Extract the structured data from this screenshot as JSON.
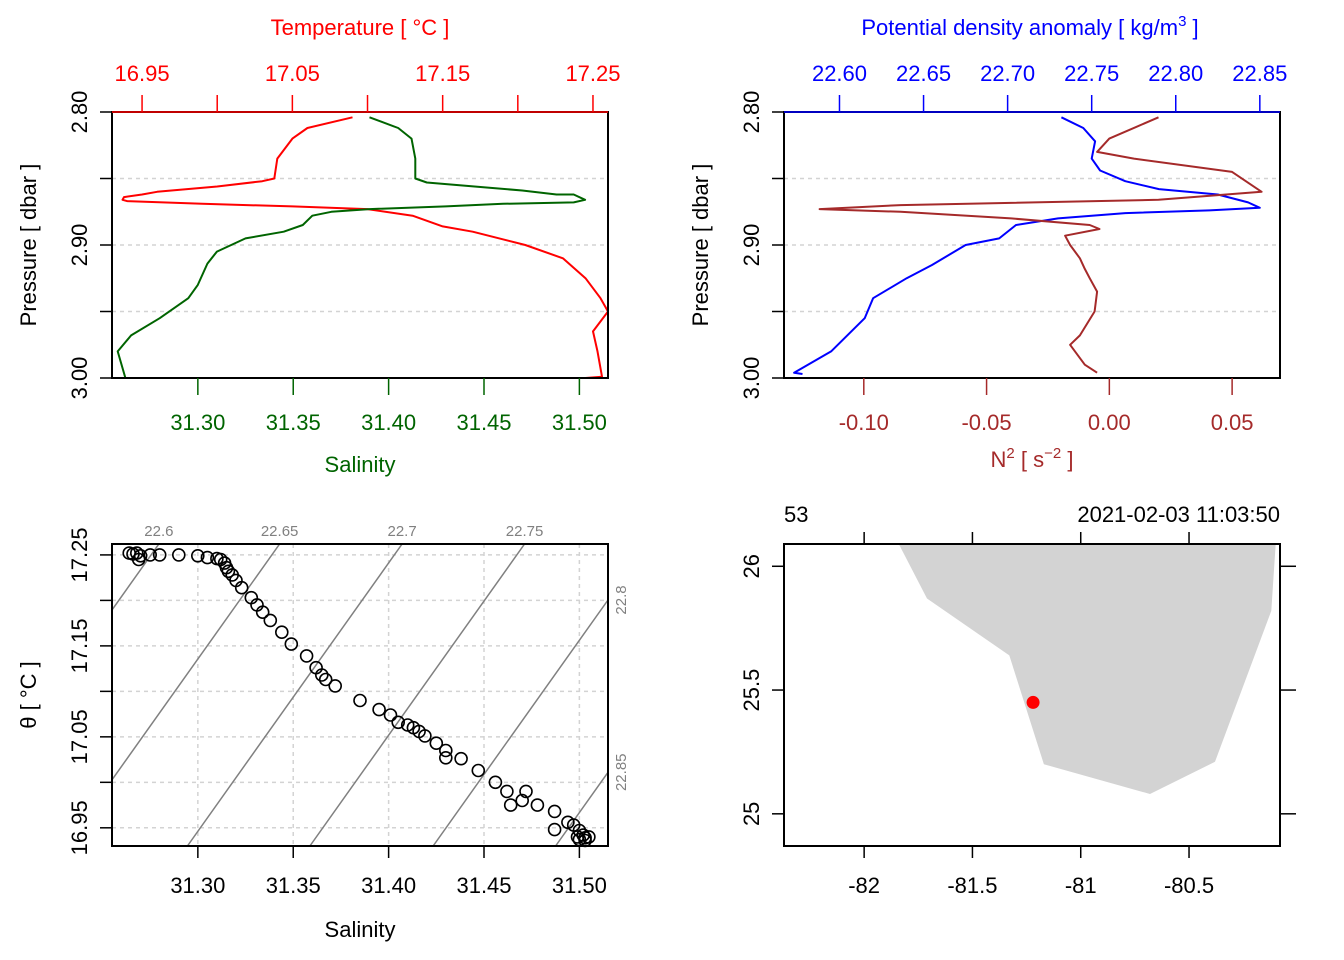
{
  "colors": {
    "temperature": "#ff0000",
    "salinity": "#006400",
    "density": "#0000ff",
    "n2": "#a52a2a",
    "isopycnal": "#808080",
    "grid": "#d3d3d3",
    "land": "#d3d3d3",
    "station": "#ff0000",
    "axis": "#000000"
  },
  "chart_data": [
    {
      "id": "ts_profile",
      "type": "line",
      "title": "",
      "ylabel": "Pressure [ dbar ]",
      "ylim": [
        2.8,
        3.0
      ],
      "y_ticks": [
        2.8,
        2.85,
        2.9,
        2.95,
        3.0
      ],
      "y_tick_labels": [
        "2.80",
        "",
        "2.90",
        "",
        "3.00"
      ],
      "y_reversed": true,
      "grid": "horizontal dashed",
      "top_axis": {
        "label": "Temperature [ °C ]",
        "lim": [
          16.93,
          17.26
        ],
        "ticks": [
          16.95,
          17.0,
          17.05,
          17.1,
          17.15,
          17.2,
          17.25
        ],
        "tick_labels": [
          "16.95",
          "",
          "17.05",
          "",
          "17.15",
          "",
          "17.25"
        ]
      },
      "bottom_axis": {
        "label": "Salinity",
        "lim": [
          31.255,
          31.515
        ],
        "ticks": [
          31.3,
          31.35,
          31.4,
          31.45,
          31.5
        ],
        "tick_labels": [
          "31.30",
          "31.35",
          "31.40",
          "31.45",
          "31.50"
        ]
      },
      "series": [
        {
          "name": "Temperature",
          "axis": "top",
          "points": [
            [
              17.09,
              2.804
            ],
            [
              17.06,
              2.812
            ],
            [
              17.05,
              2.82
            ],
            [
              17.04,
              2.835
            ],
            [
              17.038,
              2.85
            ],
            [
              17.03,
              2.852
            ],
            [
              17.0,
              2.856
            ],
            [
              16.98,
              2.858
            ],
            [
              16.96,
              2.86
            ],
            [
              16.95,
              2.862
            ],
            [
              16.938,
              2.864
            ],
            [
              16.937,
              2.866
            ],
            [
              16.94,
              2.867
            ],
            [
              16.99,
              2.869
            ],
            [
              17.05,
              2.871
            ],
            [
              17.1,
              2.873
            ],
            [
              17.13,
              2.878
            ],
            [
              17.15,
              2.886
            ],
            [
              17.17,
              2.89
            ],
            [
              17.205,
              2.9
            ],
            [
              17.23,
              2.91
            ],
            [
              17.245,
              2.925
            ],
            [
              17.255,
              2.94
            ],
            [
              17.26,
              2.95
            ],
            [
              17.25,
              2.965
            ],
            [
              17.253,
              2.98
            ],
            [
              17.256,
              2.999
            ],
            [
              17.245,
              3.0
            ]
          ]
        },
        {
          "name": "Salinity",
          "axis": "bottom",
          "points": [
            [
              31.39,
              2.804
            ],
            [
              31.405,
              2.812
            ],
            [
              31.412,
              2.82
            ],
            [
              31.414,
              2.835
            ],
            [
              31.414,
              2.85
            ],
            [
              31.42,
              2.853
            ],
            [
              31.445,
              2.856
            ],
            [
              31.47,
              2.859
            ],
            [
              31.488,
              2.862
            ],
            [
              31.497,
              2.862
            ],
            [
              31.503,
              2.866
            ],
            [
              31.497,
              2.868
            ],
            [
              31.46,
              2.869
            ],
            [
              31.43,
              2.871
            ],
            [
              31.39,
              2.873
            ],
            [
              31.37,
              2.875
            ],
            [
              31.36,
              2.878
            ],
            [
              31.355,
              2.885
            ],
            [
              31.345,
              2.89
            ],
            [
              31.325,
              2.895
            ],
            [
              31.31,
              2.905
            ],
            [
              31.305,
              2.914
            ],
            [
              31.3,
              2.93
            ],
            [
              31.295,
              2.94
            ],
            [
              31.28,
              2.955
            ],
            [
              31.265,
              2.968
            ],
            [
              31.258,
              2.98
            ],
            [
              31.262,
              3.0
            ]
          ]
        }
      ]
    },
    {
      "id": "density_n2_profile",
      "type": "line",
      "title": "",
      "ylabel": "Pressure [ dbar ]",
      "ylim": [
        2.8,
        3.0
      ],
      "y_ticks": [
        2.8,
        2.85,
        2.9,
        2.95,
        3.0
      ],
      "y_tick_labels": [
        "2.80",
        "",
        "2.90",
        "",
        "3.00"
      ],
      "y_reversed": true,
      "grid": "horizontal dashed",
      "top_axis": {
        "label": "Potential density anomaly [ kg/m³ ]",
        "lim": [
          22.567,
          22.862
        ],
        "ticks": [
          22.6,
          22.65,
          22.7,
          22.75,
          22.8,
          22.85
        ],
        "tick_labels": [
          "22.60",
          "22.65",
          "22.70",
          "22.75",
          "22.80",
          "22.85"
        ]
      },
      "bottom_axis": {
        "label": "N² [ s⁻² ]",
        "lim": [
          -0.1325,
          0.0695
        ],
        "ticks": [
          -0.1,
          -0.05,
          0.0,
          0.05
        ],
        "tick_labels": [
          "-0.10",
          "-0.05",
          "0.00",
          "0.05"
        ]
      },
      "series": [
        {
          "name": "Potential density anomaly",
          "axis": "top",
          "points": [
            [
              22.732,
              2.804
            ],
            [
              22.745,
              2.812
            ],
            [
              22.752,
              2.822
            ],
            [
              22.75,
              2.835
            ],
            [
              22.755,
              2.844
            ],
            [
              22.77,
              2.852
            ],
            [
              22.79,
              2.858
            ],
            [
              22.825,
              2.862
            ],
            [
              22.843,
              2.868
            ],
            [
              22.85,
              2.872
            ],
            [
              22.82,
              2.874
            ],
            [
              22.77,
              2.876
            ],
            [
              22.73,
              2.88
            ],
            [
              22.705,
              2.885
            ],
            [
              22.695,
              2.895
            ],
            [
              22.675,
              2.9
            ],
            [
              22.655,
              2.915
            ],
            [
              22.64,
              2.925
            ],
            [
              22.62,
              2.94
            ],
            [
              22.615,
              2.955
            ],
            [
              22.595,
              2.98
            ],
            [
              22.573,
              2.996
            ],
            [
              22.578,
              2.997
            ]
          ]
        },
        {
          "name": "N2",
          "axis": "bottom",
          "points": [
            [
              0.02,
              2.804
            ],
            [
              0.0,
              2.82
            ],
            [
              -0.005,
              2.83
            ],
            [
              0.01,
              2.835
            ],
            [
              0.05,
              2.845
            ],
            [
              0.062,
              2.86
            ],
            [
              0.02,
              2.866
            ],
            [
              -0.085,
              2.87
            ],
            [
              -0.118,
              2.873
            ],
            [
              -0.085,
              2.875
            ],
            [
              -0.04,
              2.88
            ],
            [
              -0.008,
              2.885
            ],
            [
              -0.004,
              2.888
            ],
            [
              -0.018,
              2.893
            ],
            [
              -0.016,
              2.9
            ],
            [
              -0.012,
              2.91
            ],
            [
              -0.01,
              2.918
            ],
            [
              -0.008,
              2.925
            ],
            [
              -0.005,
              2.935
            ],
            [
              -0.006,
              2.95
            ],
            [
              -0.012,
              2.968
            ],
            [
              -0.016,
              2.975
            ],
            [
              -0.01,
              2.99
            ],
            [
              -0.005,
              2.996
            ]
          ]
        }
      ]
    },
    {
      "id": "ts_diagram",
      "type": "scatter",
      "title": "",
      "xlabel": "Salinity",
      "ylabel": "θ [ °C ]",
      "xlim": [
        31.255,
        31.515
      ],
      "ylim": [
        16.93,
        17.262
      ],
      "x_ticks": [
        31.3,
        31.35,
        31.4,
        31.45,
        31.5
      ],
      "x_tick_labels": [
        "31.30",
        "31.35",
        "31.40",
        "31.45",
        "31.50"
      ],
      "y_ticks": [
        16.95,
        17.0,
        17.05,
        17.1,
        17.15,
        17.2,
        17.25
      ],
      "y_tick_labels": [
        "16.95",
        "",
        "17.05",
        "",
        "17.15",
        "",
        "17.25"
      ],
      "grid": "dashed both",
      "isopycnals": {
        "labels_top": [
          "22.6",
          "22.65",
          "22.7",
          "22.75"
        ],
        "labels_right": [
          "22.8",
          "22.85"
        ],
        "values": [
          22.6,
          22.65,
          22.7,
          22.75,
          22.8,
          22.85
        ],
        "dtheta_dsalinity": 2.95,
        "theta_ref": 17.25,
        "salinity_at_ref": [
          31.2755,
          31.3388,
          31.403,
          31.4672,
          31.5318,
          31.596
        ]
      },
      "points": [
        [
          31.264,
          17.252
        ],
        [
          31.266,
          17.251
        ],
        [
          31.268,
          17.252
        ],
        [
          31.27,
          17.249
        ],
        [
          31.269,
          17.245
        ],
        [
          31.275,
          17.25
        ],
        [
          31.28,
          17.25
        ],
        [
          31.29,
          17.25
        ],
        [
          31.3,
          17.249
        ],
        [
          31.305,
          17.247
        ],
        [
          31.31,
          17.246
        ],
        [
          31.312,
          17.245
        ],
        [
          31.314,
          17.241
        ],
        [
          31.315,
          17.236
        ],
        [
          31.316,
          17.232
        ],
        [
          31.318,
          17.228
        ],
        [
          31.32,
          17.222
        ],
        [
          31.323,
          17.214
        ],
        [
          31.328,
          17.203
        ],
        [
          31.331,
          17.195
        ],
        [
          31.334,
          17.187
        ],
        [
          31.338,
          17.178
        ],
        [
          31.344,
          17.165
        ],
        [
          31.349,
          17.152
        ],
        [
          31.357,
          17.139
        ],
        [
          31.362,
          17.126
        ],
        [
          31.365,
          17.118
        ],
        [
          31.367,
          17.113
        ],
        [
          31.372,
          17.106
        ],
        [
          31.385,
          17.09
        ],
        [
          31.395,
          17.08
        ],
        [
          31.401,
          17.074
        ],
        [
          31.405,
          17.066
        ],
        [
          31.41,
          17.063
        ],
        [
          31.413,
          17.06
        ],
        [
          31.416,
          17.056
        ],
        [
          31.419,
          17.051
        ],
        [
          31.425,
          17.043
        ],
        [
          31.43,
          17.035
        ],
        [
          31.43,
          17.027
        ],
        [
          31.438,
          17.026
        ],
        [
          31.447,
          17.013
        ],
        [
          31.456,
          17.0
        ],
        [
          31.462,
          16.99
        ],
        [
          31.464,
          16.975
        ],
        [
          31.472,
          16.99
        ],
        [
          31.47,
          16.98
        ],
        [
          31.478,
          16.975
        ],
        [
          31.487,
          16.968
        ],
        [
          31.494,
          16.956
        ],
        [
          31.497,
          16.953
        ],
        [
          31.5,
          16.947
        ],
        [
          31.502,
          16.942
        ],
        [
          31.503,
          16.939
        ],
        [
          31.505,
          16.94
        ],
        [
          31.487,
          16.948
        ],
        [
          31.499,
          16.94
        ],
        [
          31.5,
          16.937
        ],
        [
          31.503,
          16.936
        ]
      ]
    },
    {
      "id": "station_map",
      "type": "scatter",
      "title": "",
      "top_left_label": "53",
      "top_right_label": "2021-02-03 11:03:50",
      "xlim": [
        -82.37,
        -80.08
      ],
      "ylim": [
        24.87,
        26.09
      ],
      "x_ticks": [
        -82,
        -81.5,
        -81,
        -80.5
      ],
      "x_tick_labels": [
        "-82",
        "-81.5",
        "-81",
        "-80.5"
      ],
      "y_ticks": [
        25,
        25.5,
        26
      ],
      "y_tick_labels": [
        "25",
        "25.5",
        "26"
      ],
      "land_polygon": [
        [
          -81.84,
          26.09
        ],
        [
          -81.71,
          25.87
        ],
        [
          -81.33,
          25.64
        ],
        [
          -81.17,
          25.2
        ],
        [
          -80.68,
          25.08
        ],
        [
          -80.38,
          25.21
        ],
        [
          -80.12,
          25.82
        ],
        [
          -80.1,
          26.09
        ]
      ],
      "station": {
        "lon": -81.22,
        "lat": 25.45
      }
    }
  ]
}
